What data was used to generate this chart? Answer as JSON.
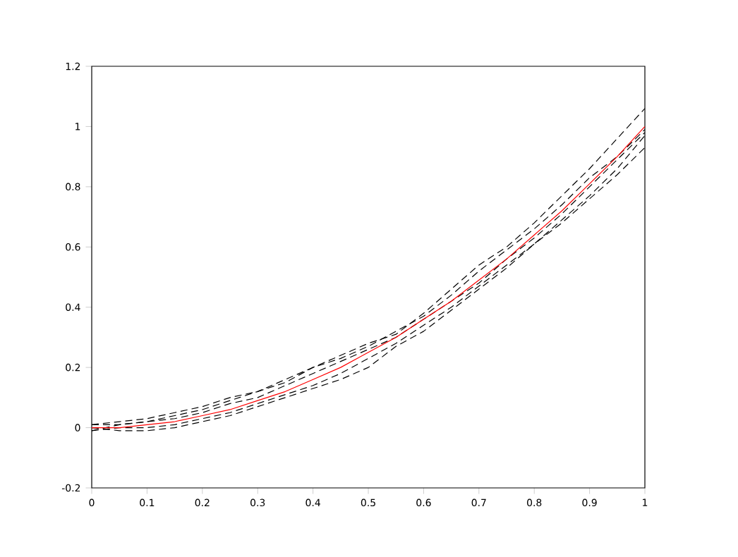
{
  "chart_data": {
    "type": "line",
    "x": [
      0,
      0.05,
      0.1,
      0.15,
      0.2,
      0.25,
      0.3,
      0.35,
      0.4,
      0.45,
      0.5,
      0.55,
      0.6,
      0.65,
      0.7,
      0.75,
      0.8,
      0.85,
      0.9,
      0.95,
      1
    ],
    "series": [
      {
        "color": "#000000",
        "line_style": "dashed",
        "values": [
          0.01,
          0.02,
          0.03,
          0.05,
          0.07,
          0.1,
          0.12,
          0.15,
          0.2,
          0.24,
          0.28,
          0.31,
          0.38,
          0.46,
          0.54,
          0.6,
          0.68,
          0.77,
          0.86,
          0.96,
          1.06
        ]
      },
      {
        "color": "#000000",
        "line_style": "dashed",
        "values": [
          -0.01,
          0.01,
          0.02,
          0.04,
          0.06,
          0.09,
          0.12,
          0.16,
          0.2,
          0.23,
          0.27,
          0.32,
          0.37,
          0.44,
          0.52,
          0.59,
          0.66,
          0.74,
          0.83,
          0.9,
          0.99
        ]
      },
      {
        "color": "#000000",
        "line_style": "dashed",
        "values": [
          0,
          -0.01,
          -0.01,
          0,
          0.02,
          0.04,
          0.07,
          0.1,
          0.13,
          0.16,
          0.2,
          0.27,
          0.32,
          0.39,
          0.46,
          0.53,
          0.61,
          0.69,
          0.77,
          0.86,
          0.97
        ]
      },
      {
        "color": "#000000",
        "line_style": "dashed",
        "values": [
          -0.01,
          0,
          0,
          0.01,
          0.03,
          0.05,
          0.08,
          0.11,
          0.14,
          0.18,
          0.23,
          0.28,
          0.34,
          0.4,
          0.47,
          0.54,
          0.61,
          0.68,
          0.76,
          0.84,
          0.93
        ]
      },
      {
        "color": "#000000",
        "line_style": "dashed",
        "values": [
          0.01,
          0.01,
          0.02,
          0.03,
          0.05,
          0.08,
          0.1,
          0.14,
          0.18,
          0.22,
          0.26,
          0.3,
          0.36,
          0.42,
          0.48,
          0.56,
          0.63,
          0.71,
          0.8,
          0.89,
          0.98
        ]
      },
      {
        "color": "#ff0000",
        "line_style": "solid",
        "values": [
          0,
          0,
          0.01,
          0.02,
          0.04,
          0.06,
          0.09,
          0.12,
          0.16,
          0.2,
          0.25,
          0.3,
          0.36,
          0.42,
          0.49,
          0.56,
          0.64,
          0.72,
          0.81,
          0.9,
          1
        ]
      }
    ],
    "xlim": [
      0,
      1
    ],
    "ylim": [
      -0.2,
      1.2
    ],
    "xticks": [
      0,
      0.1,
      0.2,
      0.3,
      0.4,
      0.5,
      0.6,
      0.7,
      0.8,
      0.9,
      1
    ],
    "yticks": [
      -0.2,
      0,
      0.2,
      0.4,
      0.6,
      0.8,
      1,
      1.2
    ],
    "grid": false
  }
}
